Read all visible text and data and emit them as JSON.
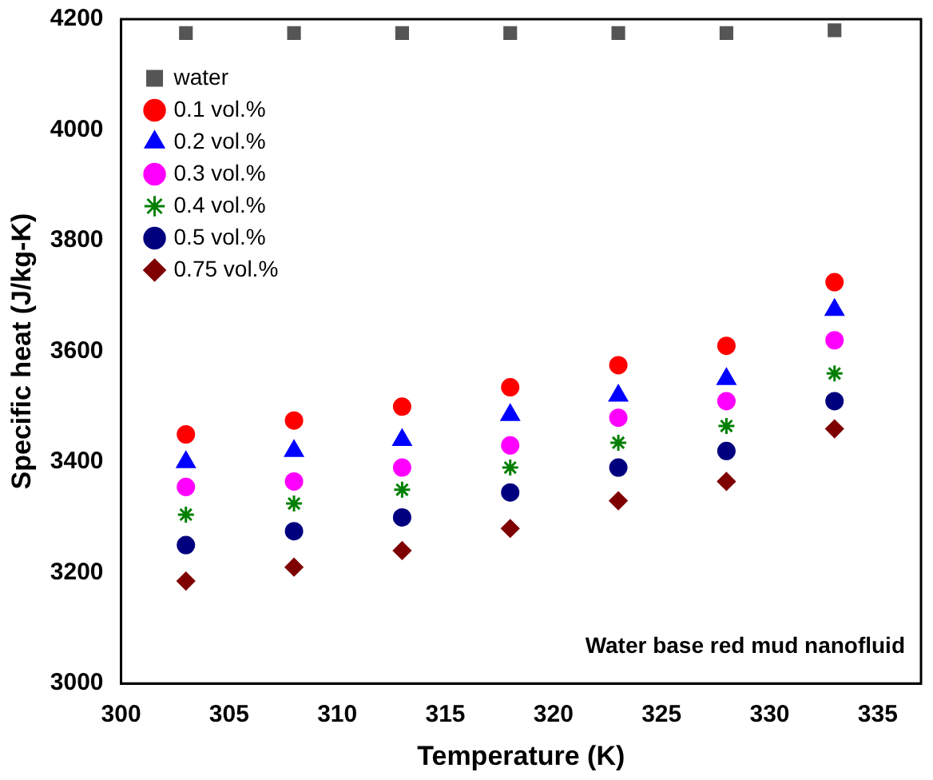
{
  "chart_data": {
    "type": "scatter",
    "xlabel": "Temperature (K)",
    "ylabel": "Specific heat (J/kg-K)",
    "x": [
      303,
      308,
      313,
      318,
      323,
      328,
      333
    ],
    "xlim": [
      300,
      337
    ],
    "xticks": [
      300,
      305,
      310,
      315,
      320,
      325,
      330,
      335
    ],
    "ylim": [
      3000,
      4200
    ],
    "yticks": [
      3000,
      3200,
      3400,
      3600,
      3800,
      4000,
      4200
    ],
    "grid": false,
    "legend": "top left",
    "annotations": [
      "Water base red mud nanofluid"
    ],
    "series": [
      {
        "name": "water",
        "color": "#555555",
        "marker": "square",
        "values": [
          4175,
          4175,
          4175,
          4175,
          4175,
          4175,
          4180
        ]
      },
      {
        "name": "0.1 vol.%",
        "color": "#ff0000",
        "marker": "circle",
        "values": [
          3450,
          3475,
          3500,
          3535,
          3575,
          3610,
          3725
        ]
      },
      {
        "name": "0.2 vol.%",
        "color": "#0000ff",
        "marker": "triangle",
        "values": [
          3400,
          3420,
          3440,
          3485,
          3520,
          3550,
          3675
        ]
      },
      {
        "name": "0.3 vol.%",
        "color": "#ff00ff",
        "marker": "circle",
        "values": [
          3355,
          3365,
          3390,
          3430,
          3480,
          3510,
          3620
        ]
      },
      {
        "name": "0.4 vol.%",
        "color": "#007f00",
        "marker": "cross",
        "values": [
          3305,
          3325,
          3350,
          3390,
          3435,
          3465,
          3560
        ]
      },
      {
        "name": "0.5 vol.%",
        "color": "#00007f",
        "marker": "circle",
        "values": [
          3250,
          3275,
          3300,
          3345,
          3390,
          3420,
          3510
        ]
      },
      {
        "name": "0.75 vol.%",
        "color": "#7f0000",
        "marker": "diamond",
        "values": [
          3185,
          3210,
          3240,
          3280,
          3330,
          3365,
          3460
        ]
      }
    ]
  }
}
